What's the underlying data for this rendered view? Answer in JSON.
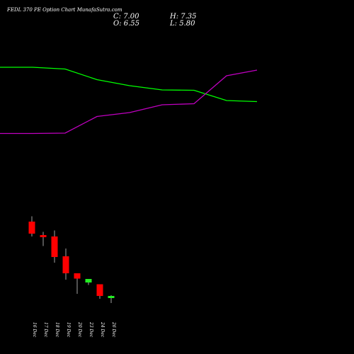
{
  "header": {
    "title": "FEDL 370 PE Option Chart MunafaSutra.com",
    "c_text": "C: 7.00",
    "h_text": "H: 7.35",
    "o_text": "O: 6.55",
    "l_text": "L: 5.80"
  },
  "colors": {
    "background": "#000000",
    "up": "#22ee22",
    "down": "#ff0000",
    "green_line": "#00ff00",
    "magenta_line": "#c000c0",
    "text": "#ffffff"
  },
  "chart_data": {
    "type": "candlestick",
    "categories": [
      "16 Dec",
      "17 Dec",
      "18 Dec",
      "19 Dec",
      "20 Dec",
      "23 Dec",
      "24 Dec",
      "26 Dec"
    ],
    "candles": [
      {
        "date": "16 Dec",
        "open": 4.4,
        "high": 5.9,
        "low": 0.2,
        "close": 1.0
      },
      {
        "date": "17 Dec",
        "open": 0.6,
        "high": 1.5,
        "low": -2.5,
        "close": 0.0
      },
      {
        "date": "18 Dec",
        "open": 0.2,
        "high": 1.9,
        "low": -7.2,
        "close": -5.6
      },
      {
        "date": "19 Dec",
        "open": -5.4,
        "high": -3.2,
        "low": -12.0,
        "close": -10.2
      },
      {
        "date": "20 Dec",
        "open": -10.2,
        "high": -10.2,
        "low": -16.0,
        "close": -11.7
      },
      {
        "date": "23 Dec",
        "open": -12.8,
        "high": -12.5,
        "low": -13.5,
        "close": -11.8
      },
      {
        "date": "24 Dec",
        "open": -13.3,
        "high": -13.3,
        "low": -17.4,
        "close": -16.6
      },
      {
        "date": "26 Dec",
        "open": -17.2,
        "high": -16.4,
        "low": -18.6,
        "close": -16.6
      }
    ],
    "overlay_series": [
      {
        "color": "#00ff00",
        "values": [
          48.0,
          48.0,
          47.5,
          44.5,
          42.8,
          41.6,
          41.5,
          38.6,
          38.3
        ]
      },
      {
        "color": "#c000c0",
        "values": [
          29.3,
          29.3,
          29.4,
          34.1,
          35.2,
          37.4,
          37.7,
          45.6,
          47.2
        ]
      },
      {
        "note_x_index": [
          0,
          1,
          2,
          3,
          4,
          5,
          6,
          7,
          8
        ]
      }
    ],
    "ylim": [
      -25,
      55
    ],
    "grid": false
  }
}
